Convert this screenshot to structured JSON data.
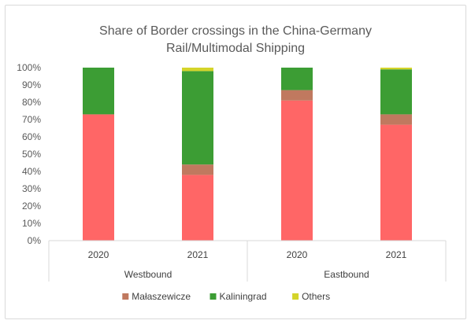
{
  "chart_data": {
    "type": "bar",
    "stacked": true,
    "title_lines": [
      "Share of Border crossings in the China-Germany",
      "Rail/Multimodal Shipping"
    ],
    "y_ticks": [
      "0%",
      "10%",
      "20%",
      "30%",
      "40%",
      "50%",
      "60%",
      "70%",
      "80%",
      "90%",
      "100%"
    ],
    "ylim": [
      0,
      100
    ],
    "categories": [
      "2020",
      "2021",
      "2020",
      "2021"
    ],
    "groups": [
      {
        "label": "Westbound",
        "categories": [
          0,
          1
        ]
      },
      {
        "label": "Eastbound",
        "categories": [
          2,
          3
        ]
      }
    ],
    "series": [
      {
        "name": "",
        "color": "#ff6666",
        "values": [
          73,
          38,
          81,
          67
        ],
        "in_legend": false
      },
      {
        "name": "Małaszewicze",
        "color": "#c0795f",
        "values": [
          0,
          6,
          6,
          6
        ],
        "in_legend": true
      },
      {
        "name": "Kaliningrad",
        "color": "#3c9d34",
        "values": [
          27,
          54,
          13,
          26
        ],
        "in_legend": true
      },
      {
        "name": "Others",
        "color": "#d4d42a",
        "values": [
          0,
          2,
          0,
          1
        ],
        "in_legend": true
      }
    ],
    "legend_position": "bottom",
    "grid": false
  }
}
